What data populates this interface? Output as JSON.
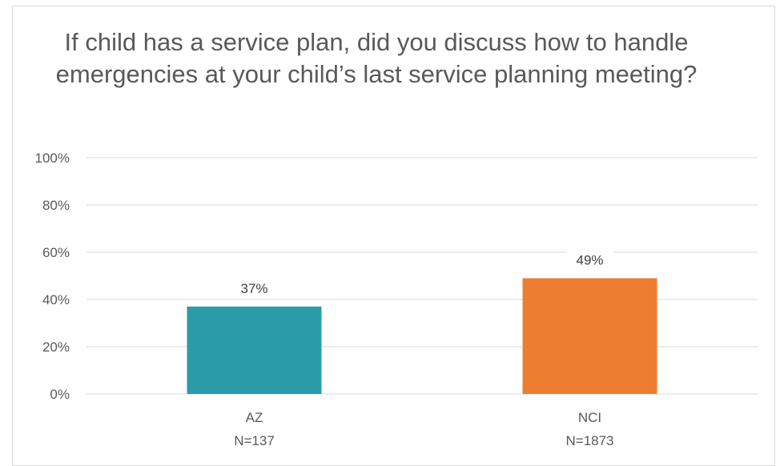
{
  "chart_data": {
    "type": "bar",
    "title": "If child has a service plan, did you discuss how to handle emergencies at your child’s last service planning meeting?",
    "categories": [
      "AZ",
      "NCI"
    ],
    "category_sublabels": [
      "N=137",
      "N=1873"
    ],
    "values": [
      37,
      49
    ],
    "value_labels": [
      "37%",
      "49%"
    ],
    "bar_colors": [
      "#2a9ca8",
      "#ed7d31"
    ],
    "ylim": [
      0,
      100
    ],
    "y_ticks": [
      0,
      20,
      40,
      60,
      80,
      100
    ],
    "y_tick_labels": [
      "0%",
      "20%",
      "40%",
      "60%",
      "80%",
      "100%"
    ],
    "xlabel": "",
    "ylabel": "",
    "grid": true,
    "gridline_color": "#d9d9d9"
  }
}
